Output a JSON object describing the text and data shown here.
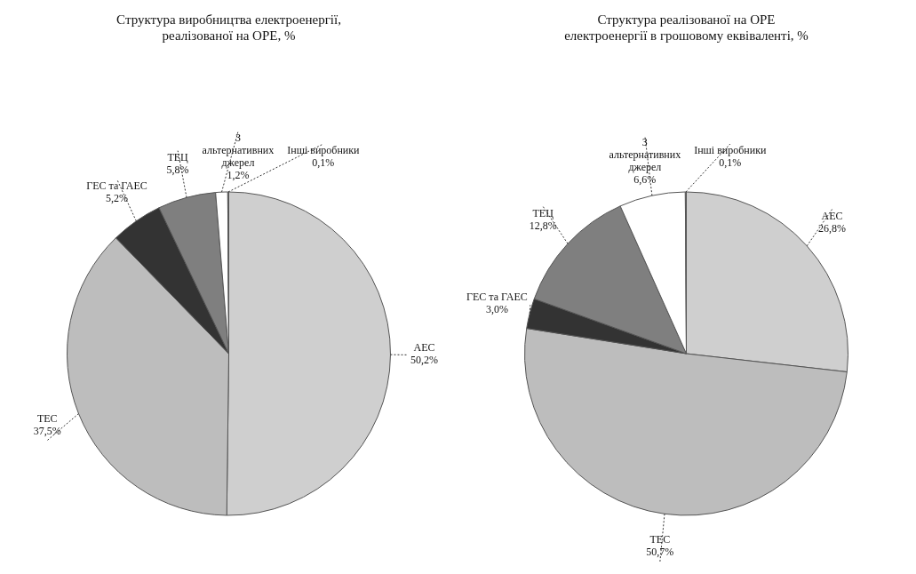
{
  "chart_data": [
    {
      "type": "pie",
      "title": "Структура виробництва електроенергії, реалізованої на ОРЕ, %",
      "categories": [
        "АЕС",
        "ТЕС",
        "ГЕС та ГАЕС",
        "ТЕЦ",
        "З альтернативних джерел",
        "Інші виробники"
      ],
      "values": [
        50.2,
        37.5,
        5.2,
        5.8,
        1.2,
        0.1
      ],
      "value_labels": [
        "50,2%",
        "37,5%",
        "5,2%",
        "5,8%",
        "1,2%",
        "0,1%"
      ],
      "colors": [
        "#cfcfcf",
        "#bdbdbd",
        "#333333",
        "#7f7f7f",
        "#ffffff",
        "#f4f4f4"
      ]
    },
    {
      "type": "pie",
      "title": "Структура реалізованої на ОРЕ електроенергії в грошовому еквіваленті, %",
      "categories": [
        "АЕС",
        "ТЕС",
        "ГЕС та ГАЕС",
        "ТЕЦ",
        "З альтернативних джерел",
        "Інші виробники"
      ],
      "values": [
        26.8,
        50.7,
        3.0,
        12.8,
        6.6,
        0.1
      ],
      "value_labels": [
        "26,8%",
        "50,7%",
        "3,0%",
        "12,8%",
        "6,6%",
        "0,1%"
      ],
      "colors": [
        "#cfcfcf",
        "#bdbdbd",
        "#333333",
        "#7f7f7f",
        "#ffffff",
        "#f4f4f4"
      ]
    }
  ]
}
